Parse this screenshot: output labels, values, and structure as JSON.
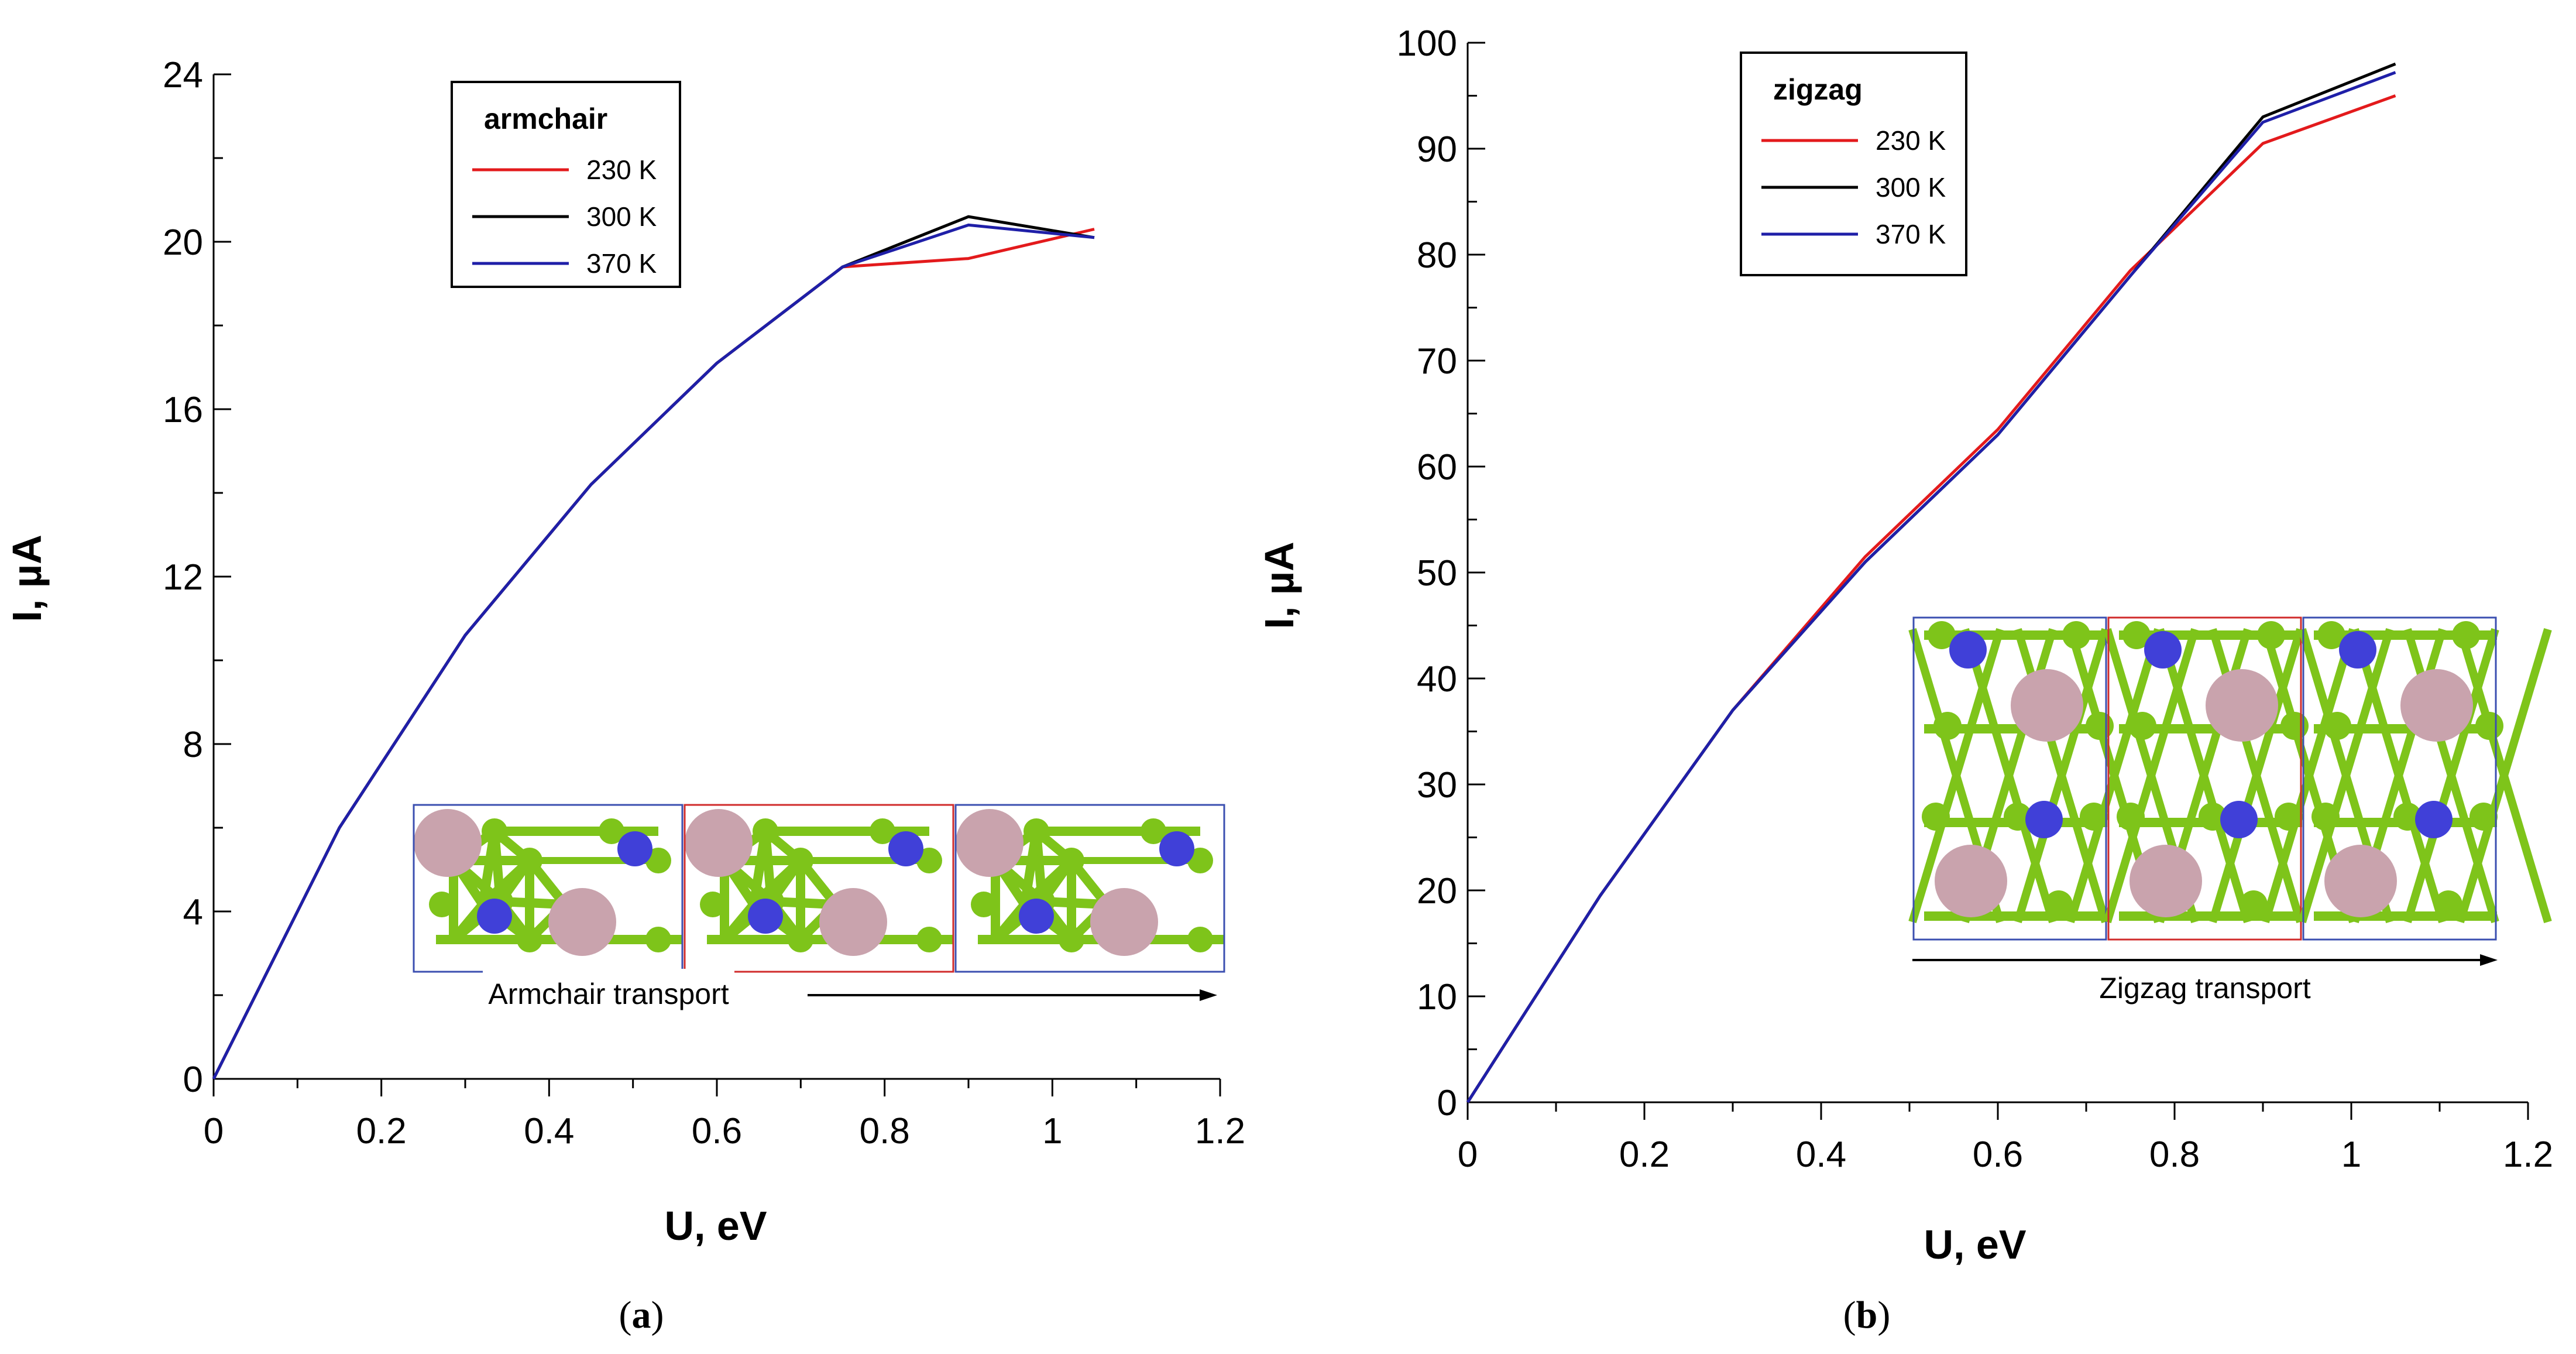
{
  "chart_data": [
    {
      "type": "line",
      "panel": "a",
      "caption": "a",
      "xlabel": "U, eV",
      "ylabel": "I, µA",
      "xlim": [
        0,
        1.2
      ],
      "ylim": [
        0,
        24
      ],
      "xticks": [
        0,
        0.2,
        0.4,
        0.6,
        0.8,
        1,
        1.2
      ],
      "xtick_labels": [
        "0",
        "0.2",
        "0.4",
        "0.6",
        "0.8",
        "1",
        "1.2"
      ],
      "yticks": [
        0,
        4,
        8,
        12,
        16,
        20,
        24
      ],
      "ytick_labels": [
        "0",
        "4",
        "8",
        "12",
        "16",
        "20",
        "24"
      ],
      "legend_title": "armchair",
      "legend_position": "top-center",
      "series": [
        {
          "name": "230 K",
          "color": "#e31a1c",
          "x": [
            0,
            0.15,
            0.3,
            0.45,
            0.6,
            0.75,
            0.9,
            1.05
          ],
          "y": [
            0,
            6.0,
            10.6,
            14.2,
            17.1,
            19.4,
            19.6,
            20.3
          ]
        },
        {
          "name": "300 K",
          "color": "#000000",
          "x": [
            0,
            0.15,
            0.3,
            0.45,
            0.6,
            0.75,
            0.9,
            1.05
          ],
          "y": [
            0,
            6.0,
            10.6,
            14.2,
            17.1,
            19.4,
            20.6,
            20.1
          ]
        },
        {
          "name": "370 K",
          "color": "#1f1fa8",
          "x": [
            0,
            0.15,
            0.3,
            0.45,
            0.6,
            0.75,
            0.9,
            1.05
          ],
          "y": [
            0,
            6.0,
            10.6,
            14.2,
            17.1,
            19.4,
            20.4,
            20.1
          ]
        }
      ],
      "inset_label": "Armchair transport"
    },
    {
      "type": "line",
      "panel": "b",
      "caption": "b",
      "xlabel": "U, eV",
      "ylabel": "I, µA",
      "xlim": [
        0,
        1.2
      ],
      "ylim": [
        0,
        100
      ],
      "xticks": [
        0,
        0.2,
        0.4,
        0.6,
        0.8,
        1,
        1.2
      ],
      "xtick_labels": [
        "0",
        "0.2",
        "0.4",
        "0.6",
        "0.8",
        "1",
        "1.2"
      ],
      "yticks": [
        0,
        10,
        20,
        30,
        40,
        50,
        60,
        70,
        80,
        90,
        100
      ],
      "ytick_labels": [
        "0",
        "10",
        "20",
        "30",
        "40",
        "50",
        "60",
        "70",
        "80",
        "90",
        "100"
      ],
      "legend_title": "zigzag",
      "legend_position": "top-left",
      "series": [
        {
          "name": "230 K",
          "color": "#e31a1c",
          "x": [
            0,
            0.15,
            0.3,
            0.45,
            0.6,
            0.75,
            0.9,
            1.05
          ],
          "y": [
            0,
            19.5,
            37.0,
            51.5,
            63.5,
            78.5,
            90.5,
            95.0
          ]
        },
        {
          "name": "300 K",
          "color": "#000000",
          "x": [
            0,
            0.15,
            0.3,
            0.45,
            0.6,
            0.75,
            0.9,
            1.05
          ],
          "y": [
            0,
            19.5,
            37.0,
            51.0,
            63.0,
            78.0,
            93.0,
            98.0
          ]
        },
        {
          "name": "370 K",
          "color": "#1f1fa8",
          "x": [
            0,
            0.15,
            0.3,
            0.45,
            0.6,
            0.75,
            0.9,
            1.05
          ],
          "y": [
            0,
            19.5,
            37.0,
            51.0,
            63.0,
            78.0,
            92.5,
            97.2
          ]
        }
      ],
      "inset_label": "Zigzag transport"
    }
  ],
  "captions": {
    "open": "(",
    "close": ")"
  },
  "atom_colors": {
    "green": "#7ec41a",
    "blue": "#4040d8",
    "pink": "#c9a3ad"
  }
}
